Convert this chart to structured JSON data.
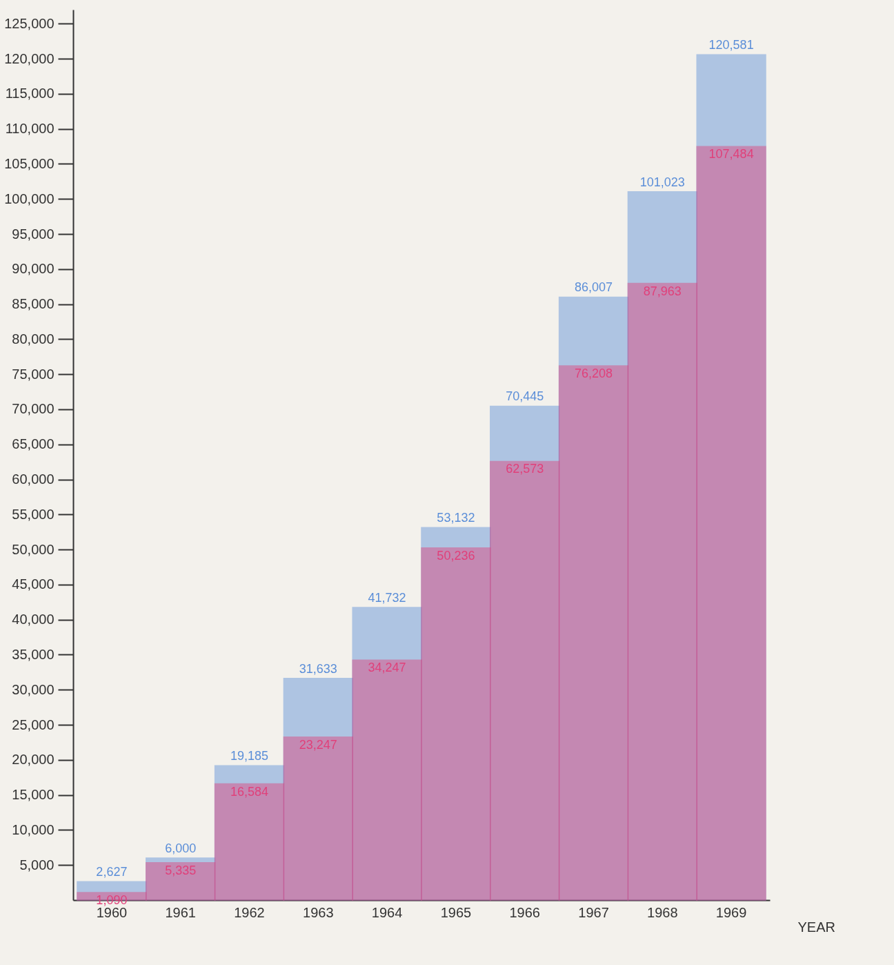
{
  "chart_data": {
    "type": "bar",
    "xlabel": "YEAR",
    "categories": [
      "1960",
      "1961",
      "1962",
      "1963",
      "1964",
      "1965",
      "1966",
      "1967",
      "1968",
      "1969"
    ],
    "series": [
      {
        "color": "#5b8ed8",
        "values": [
          2627,
          6000,
          19185,
          31633,
          41732,
          53132,
          70445,
          86007,
          101023,
          120581
        ],
        "value_labels": [
          "2,627",
          "6,000",
          "19,185",
          "31,633",
          "41,732",
          "53,132",
          "70,445",
          "86,007",
          "101,023",
          "120,581"
        ]
      },
      {
        "color": "#e0407a",
        "values": [
          1090,
          5335,
          16584,
          23247,
          34247,
          50236,
          62573,
          76208,
          87963,
          107484
        ],
        "value_labels": [
          "1,090",
          "5,335",
          "16,584",
          "23,247",
          "34,247",
          "50,236",
          "62,573",
          "76,208",
          "87,963",
          "107,484"
        ]
      }
    ],
    "ylim": [
      0,
      127000
    ],
    "yticks": [
      {
        "value": 5000,
        "label": "5,000"
      },
      {
        "value": 10000,
        "label": "10,000"
      },
      {
        "value": 15000,
        "label": "15,000"
      },
      {
        "value": 20000,
        "label": "20,000"
      },
      {
        "value": 25000,
        "label": "25,000"
      },
      {
        "value": 30000,
        "label": "30,000"
      },
      {
        "value": 35000,
        "label": "35,000"
      },
      {
        "value": 40000,
        "label": "40,000"
      },
      {
        "value": 45000,
        "label": "45,000"
      },
      {
        "value": 50000,
        "label": "50,000"
      },
      {
        "value": 55000,
        "label": "55,000"
      },
      {
        "value": 60000,
        "label": "60,000"
      },
      {
        "value": 65000,
        "label": "65,000"
      },
      {
        "value": 70000,
        "label": "70,000"
      },
      {
        "value": 75000,
        "label": "75,000"
      },
      {
        "value": 80000,
        "label": "80,000"
      },
      {
        "value": 85000,
        "label": "85,000"
      },
      {
        "value": 90000,
        "label": "90,000"
      },
      {
        "value": 95000,
        "label": "95,000"
      },
      {
        "value": 100000,
        "label": "100,000"
      },
      {
        "value": 105000,
        "label": "105,000"
      },
      {
        "value": 110000,
        "label": "110,000"
      },
      {
        "value": 115000,
        "label": "115,000"
      },
      {
        "value": 120000,
        "label": "120,000"
      },
      {
        "value": 125000,
        "label": "125,000"
      }
    ],
    "grid": false
  }
}
